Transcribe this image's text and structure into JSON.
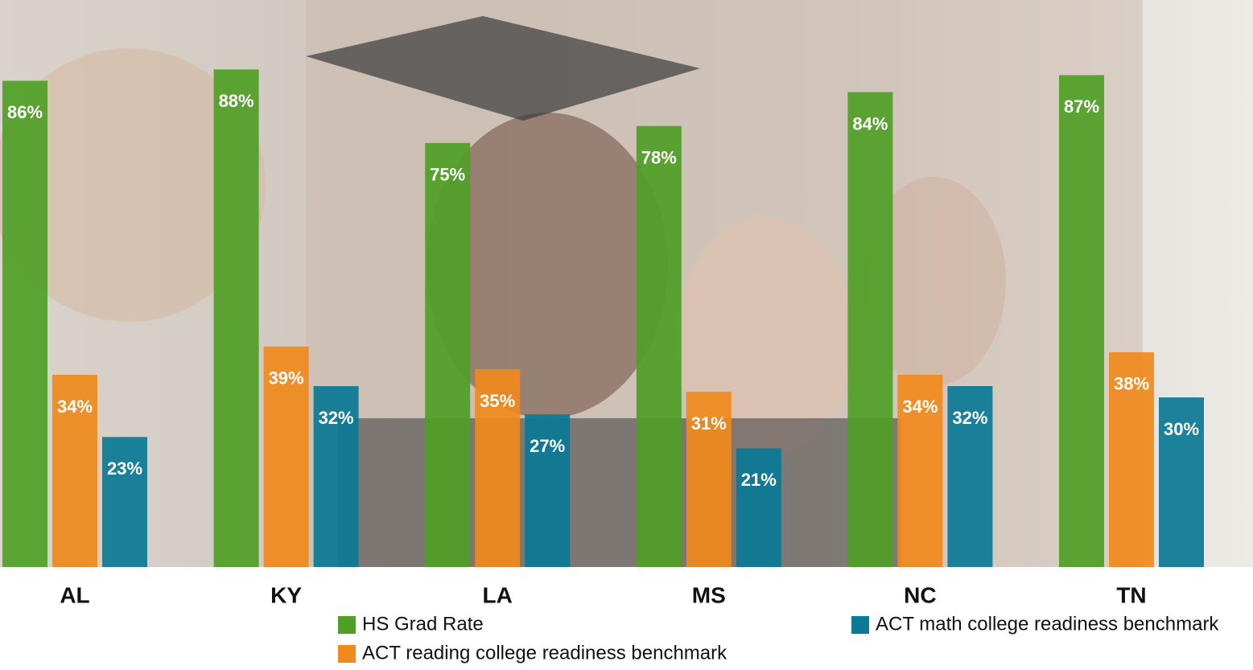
{
  "chart_data": {
    "type": "bar",
    "categories": [
      "AL",
      "KY",
      "LA",
      "MS",
      "NC",
      "TN"
    ],
    "series": [
      {
        "name": "HS Grad Rate",
        "color": "#4f9f26",
        "values": [
          86,
          88,
          75,
          78,
          84,
          87
        ],
        "value_labels": [
          "86%",
          "88%",
          "75%",
          "78%",
          "84%",
          "87%"
        ]
      },
      {
        "name": "ACT reading college readiness benchmark",
        "color": "#f08a1c",
        "values": [
          34,
          39,
          35,
          31,
          34,
          38
        ],
        "value_labels": [
          "34%",
          "39%",
          "35%",
          "31%",
          "34%",
          "38%"
        ]
      },
      {
        "name": "ACT math college readiness benchmark",
        "color": "#0a7a96",
        "values": [
          23,
          32,
          27,
          21,
          32,
          30
        ],
        "value_labels": [
          "23%",
          "32%",
          "27%",
          "21%",
          "32%",
          "30%"
        ]
      }
    ]
  }
}
